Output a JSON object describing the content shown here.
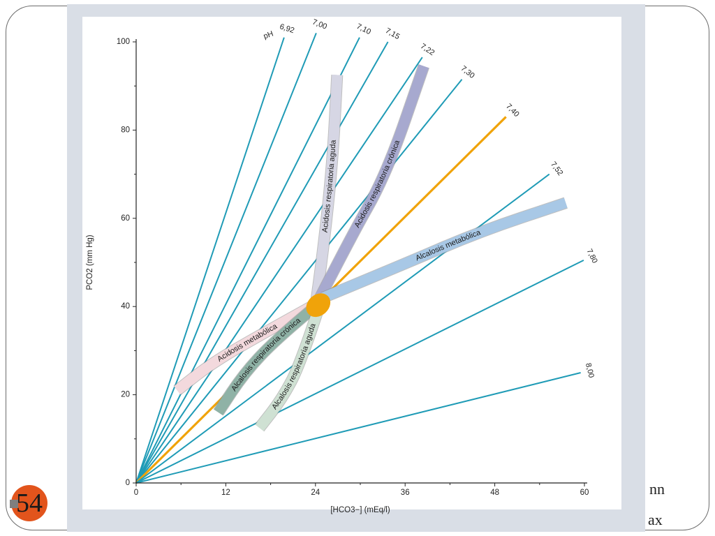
{
  "slide": {
    "page_number": "54",
    "right_fragments": [
      "nn",
      "ax"
    ]
  },
  "colors": {
    "iso_ph_line": "#1f9bb6",
    "normal_ph_line": "#f0a30a",
    "normal_region": "#f0a30a",
    "axis": "#222222",
    "panel": "#d9dee6",
    "plot_bg": "#ffffff"
  },
  "chart_data": {
    "type": "line",
    "title": "",
    "xlabel": "[HCO3−] (mEq/l)",
    "ylabel": "PCO2 (mm Hg)",
    "xlim": [
      0,
      60
    ],
    "ylim": [
      0,
      100
    ],
    "xticks": [
      0,
      12,
      24,
      36,
      48,
      60
    ],
    "yticks": [
      0,
      20,
      40,
      60,
      80,
      100
    ],
    "grid": false,
    "ph_prefix": "pH",
    "ph_lines": [
      {
        "label": "6,92",
        "end": [
          19.8,
          101
        ],
        "normal": false
      },
      {
        "label": "7,00",
        "end": [
          24.1,
          102
        ],
        "normal": false
      },
      {
        "label": "7,10",
        "end": [
          29.9,
          101
        ],
        "normal": false
      },
      {
        "label": "7,15",
        "end": [
          33.7,
          100
        ],
        "normal": false
      },
      {
        "label": "7,22",
        "end": [
          38.3,
          96.5
        ],
        "normal": false
      },
      {
        "label": "7,30",
        "end": [
          43.6,
          91.5
        ],
        "normal": false
      },
      {
        "label": "7,40",
        "end": [
          49.5,
          83
        ],
        "normal": true
      },
      {
        "label": "7,52",
        "end": [
          55.3,
          70
        ],
        "normal": false
      },
      {
        "label": "7,80",
        "end": [
          59.9,
          50.5
        ],
        "normal": false
      },
      {
        "label": "8,00",
        "end": [
          59.5,
          25
        ],
        "normal": false
      }
    ],
    "regions": [
      {
        "label": "Acidosis respiratoria aguda",
        "color": "#d6d6e4",
        "points": [
          [
            24,
            40
          ],
          [
            25,
            52
          ],
          [
            26.3,
            73
          ],
          [
            26.9,
            92.5
          ]
        ]
      },
      {
        "label": "Acidosis respiratoria crónica",
        "color": "#a7a9cf",
        "points": [
          [
            24,
            40
          ],
          [
            28.5,
            55
          ],
          [
            33.5,
            70
          ],
          [
            38.5,
            94.5
          ]
        ]
      },
      {
        "label": "Alcalosis metabólica",
        "color": "#a8c8e6",
        "points": [
          [
            25,
            42
          ],
          [
            35,
            49
          ],
          [
            46,
            57
          ],
          [
            57.5,
            63.5
          ]
        ]
      },
      {
        "label": "Acidosis metabólica",
        "color": "#f3d9dd",
        "points": [
          [
            24,
            40.5
          ],
          [
            16,
            33
          ],
          [
            10,
            27
          ],
          [
            5.5,
            21
          ]
        ]
      },
      {
        "label": "Alcalosis respiratoria crónica",
        "color": "#8fb2a6",
        "points": [
          [
            24,
            40
          ],
          [
            19,
            33
          ],
          [
            14.5,
            25
          ],
          [
            11,
            16
          ]
        ]
      },
      {
        "label": "Alcalosis respiratoria aguda",
        "color": "#cfe1d3",
        "points": [
          [
            24.5,
            40
          ],
          [
            22,
            27
          ],
          [
            19.5,
            19
          ],
          [
            16.5,
            12.5
          ]
        ]
      }
    ],
    "normal_point": {
      "x": 24,
      "y": 40
    }
  }
}
